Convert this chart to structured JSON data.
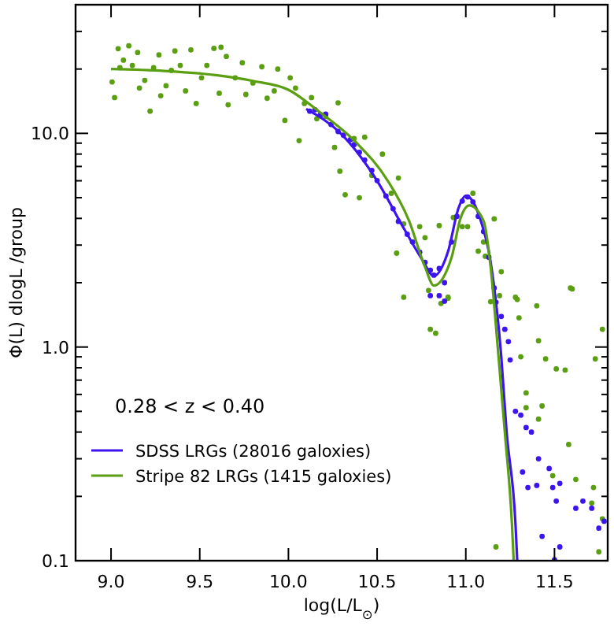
{
  "chart_data": {
    "type": "scatter",
    "xlabel": "log(L/L$_{⊙}$)",
    "ylabel": "Φ(L) dlogL /group",
    "log": "y",
    "legend": "bottom left",
    "grid": false,
    "annotations": [
      "0.28 < z < 0.40"
    ],
    "xlim": [
      8.8,
      11.8
    ],
    "ylim": [
      0.1,
      40
    ],
    "xticks": [
      {
        "value": 9,
        "label": "9.0"
      },
      {
        "value": 9.5,
        "label": "9.5"
      },
      {
        "value": 10,
        "label": "10.0"
      },
      {
        "value": 10.5,
        "label": "10.5"
      },
      {
        "value": 11,
        "label": "11.0"
      },
      {
        "value": 11.5,
        "label": "11.5"
      }
    ],
    "yticks": [
      {
        "value": 0.1,
        "label": "0.1"
      },
      {
        "value": 0.2,
        "label": null
      },
      {
        "value": 0.3,
        "label": null
      },
      {
        "value": 0.4,
        "label": null
      },
      {
        "value": 0.5,
        "label": null
      },
      {
        "value": 0.6,
        "label": null
      },
      {
        "value": 0.7,
        "label": null
      },
      {
        "value": 0.8,
        "label": null
      },
      {
        "value": 0.9,
        "label": null
      },
      {
        "value": 1,
        "label": "1.0"
      },
      {
        "value": 2,
        "label": null
      },
      {
        "value": 3,
        "label": null
      },
      {
        "value": 4,
        "label": null
      },
      {
        "value": 5,
        "label": null
      },
      {
        "value": 6,
        "label": null
      },
      {
        "value": 7,
        "label": null
      },
      {
        "value": 8,
        "label": null
      },
      {
        "value": 9,
        "label": null
      },
      {
        "value": 10,
        "label": "10.0"
      },
      {
        "value": 20,
        "label": null
      },
      {
        "value": 30,
        "label": null
      }
    ],
    "series": [
      {
        "marker": "circle",
        "color": "#5a9e12",
        "x": [
          9.006,
          9.02,
          9.04,
          9.05,
          9.07,
          9.1,
          9.12,
          9.15,
          9.16,
          9.19,
          9.22,
          9.24,
          9.27,
          9.28,
          9.31,
          9.34,
          9.36,
          9.39,
          9.42,
          9.45,
          9.48,
          9.51,
          9.54,
          9.58,
          9.61,
          9.62,
          9.65,
          9.66,
          9.7,
          9.74,
          9.76,
          9.8,
          9.85,
          9.88,
          9.92,
          9.94,
          9.98,
          10.01,
          10.04,
          10.06,
          10.09,
          10.13,
          10.16,
          10.21,
          10.26,
          10.28,
          10.29,
          10.32,
          10.37,
          10.4,
          10.43,
          10.47,
          10.53,
          10.58,
          10.62,
          10.61,
          10.65,
          10.7,
          10.74,
          10.77,
          10.85,
          10.79,
          10.86,
          10.9,
          10.93,
          10.98,
          11.01,
          11.04,
          11.07,
          11.1,
          11.11,
          11.16,
          11.2,
          11.28,
          11.4,
          11.6,
          10.65,
          10.8,
          10.83,
          10.9,
          11.14,
          11.19,
          11.29,
          11.3,
          11.41,
          11.45,
          11.31,
          11.59,
          11.77,
          11.73,
          11.34,
          11.34,
          11.43,
          11.41,
          11.51,
          11.56,
          11.58,
          11.49,
          11.62,
          11.71,
          11.72,
          11.77,
          11.17,
          11.75
        ],
        "values": [
          17.4,
          14.7,
          24.9,
          20.3,
          22.0,
          25.7,
          20.8,
          23.9,
          16.3,
          17.7,
          12.7,
          20.3,
          23.3,
          15.0,
          16.7,
          19.7,
          24.3,
          20.8,
          15.8,
          24.6,
          13.8,
          18.2,
          20.8,
          25.0,
          15.4,
          25.3,
          22.9,
          13.6,
          18.2,
          21.4,
          15.2,
          17.2,
          20.5,
          14.6,
          15.8,
          20.0,
          11.5,
          18.2,
          16.3,
          9.25,
          13.8,
          14.7,
          11.7,
          12.0,
          8.6,
          13.9,
          6.65,
          5.16,
          9.46,
          5.0,
          9.6,
          6.36,
          8.0,
          5.24,
          6.18,
          2.75,
          3.77,
          3.1,
          3.66,
          3.25,
          3.7,
          1.84,
          1.6,
          1.71,
          4.04,
          3.66,
          3.66,
          5.24,
          2.81,
          3.1,
          2.66,
          3.98,
          2.25,
          1.71,
          1.56,
          1.87,
          1.71,
          1.21,
          1.16,
          1.69,
          1.63,
          1.74,
          1.67,
          1.37,
          1.07,
          0.88,
          0.9,
          1.89,
          1.21,
          0.88,
          0.61,
          0.52,
          0.53,
          0.46,
          0.79,
          0.78,
          0.35,
          0.25,
          0.24,
          0.186,
          0.22,
          0.157,
          0.116,
          0.11
        ]
      },
      {
        "marker": "circle",
        "color": "#3c14f0",
        "x": [
          10.12,
          10.15,
          10.18,
          10.21,
          10.24,
          10.28,
          10.31,
          10.35,
          10.37,
          10.4,
          10.43,
          10.47,
          10.5,
          10.55,
          10.59,
          10.62,
          10.67,
          10.7,
          10.74,
          10.77,
          10.8,
          10.82,
          10.85,
          10.88,
          10.92,
          10.95,
          10.98,
          11.01,
          11.04,
          11.07,
          11.1,
          11.13,
          11.16,
          11.17,
          10.8,
          10.85,
          10.88,
          11.2,
          11.22,
          11.24,
          11.25,
          11.28,
          11.31,
          11.34,
          11.37,
          11.32,
          11.35,
          11.4,
          11.41,
          11.47,
          11.49,
          11.51,
          11.53,
          11.62,
          11.66,
          11.71,
          11.75,
          11.78,
          11.43,
          11.53,
          11.5
        ],
        "values": [
          12.7,
          12.9,
          12.2,
          12.3,
          11.0,
          10.2,
          9.8,
          9.36,
          8.85,
          8.15,
          7.5,
          6.71,
          6.01,
          5.09,
          4.44,
          3.87,
          3.37,
          3.1,
          2.78,
          2.49,
          2.29,
          2.17,
          2.33,
          2.0,
          3.1,
          4.09,
          4.82,
          5.04,
          4.78,
          4.09,
          3.47,
          2.63,
          1.89,
          1.62,
          1.74,
          1.74,
          1.64,
          1.39,
          1.21,
          1.06,
          0.87,
          0.5,
          0.48,
          0.42,
          0.4,
          0.26,
          0.22,
          0.225,
          0.3,
          0.27,
          0.22,
          0.19,
          0.23,
          0.176,
          0.19,
          0.176,
          0.142,
          0.153,
          0.13,
          0.116,
          0.101
        ]
      },
      {
        "type": "line",
        "name": "SDSS LRGs (28016 galoxies)",
        "color": "#3c14f0",
        "x": [
          10.1,
          10.3,
          10.5,
          10.65,
          10.75,
          10.82,
          10.9,
          10.96,
          11.0,
          11.04,
          11.08,
          11.14,
          11.2,
          11.23,
          11.28,
          11.29
        ],
        "values": [
          13.0,
          9.9,
          6.0,
          3.6,
          2.6,
          2.15,
          2.8,
          4.5,
          5.1,
          4.8,
          4.0,
          2.5,
          0.9,
          0.4,
          0.149,
          0.1
        ]
      },
      {
        "type": "line",
        "name": "Stripe 82 LRGs (1415 galoxies)",
        "color": "#5a9e12",
        "x": [
          9.0,
          9.3,
          9.6,
          9.8,
          10.0,
          10.17,
          10.38,
          10.56,
          10.68,
          10.77,
          10.82,
          10.92,
          10.97,
          11.02,
          11.1,
          11.14,
          11.18,
          11.22,
          11.26,
          11.27
        ],
        "values": [
          20.0,
          19.6,
          18.7,
          17.6,
          16.0,
          12.7,
          9.1,
          6.0,
          3.9,
          2.37,
          1.94,
          2.63,
          4.0,
          4.6,
          3.9,
          2.37,
          1.0,
          0.4,
          0.149,
          0.1
        ]
      }
    ]
  }
}
